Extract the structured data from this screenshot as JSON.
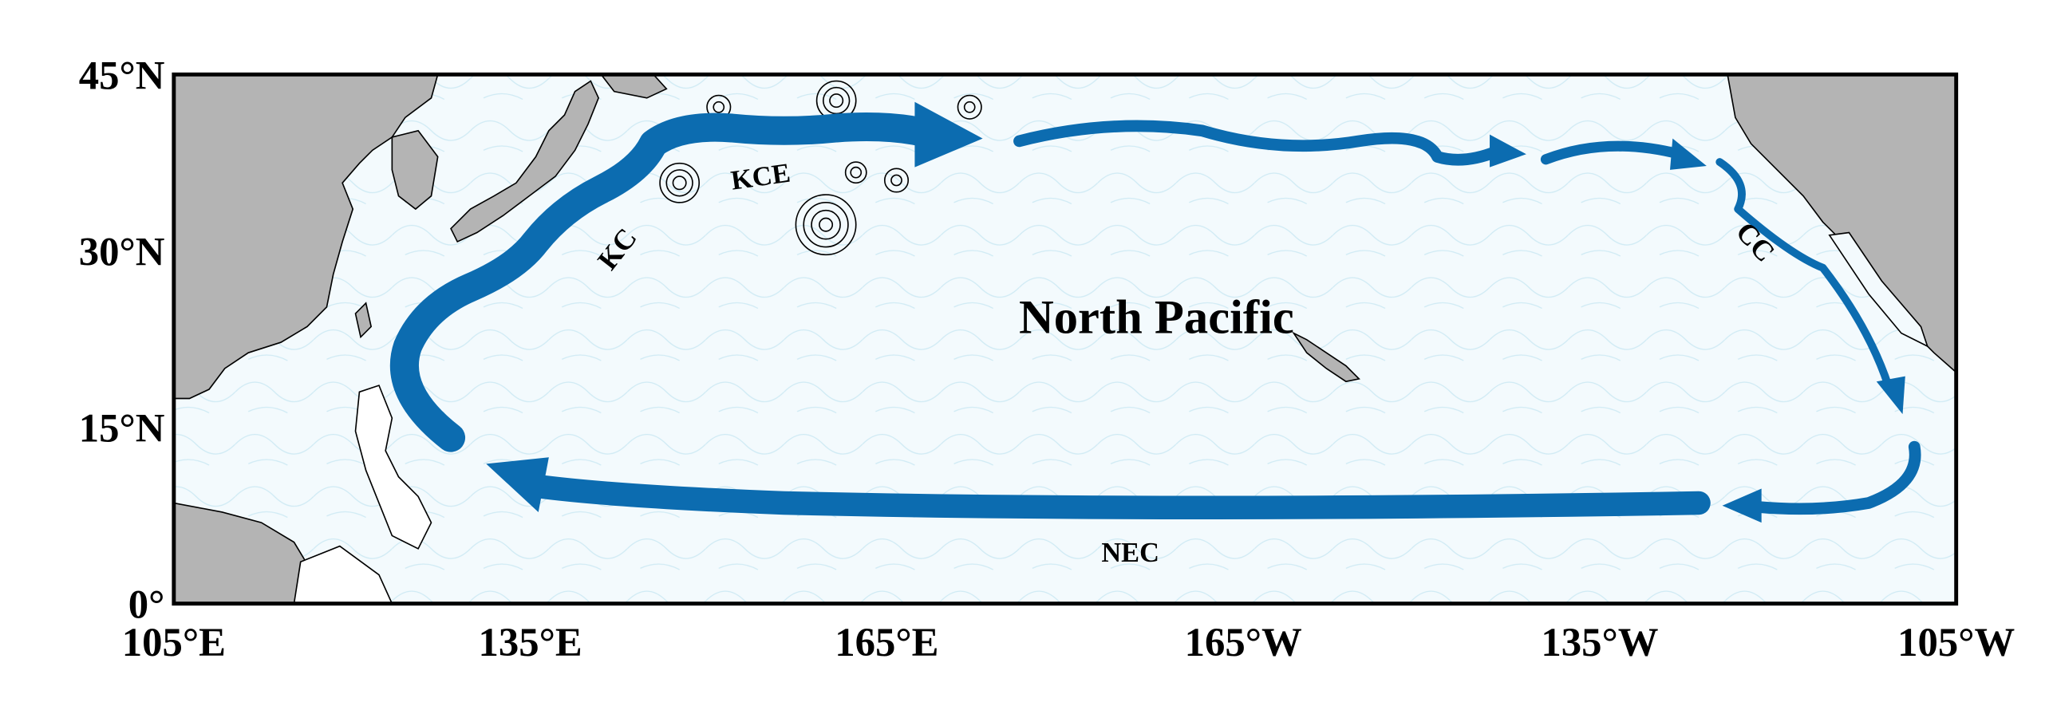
{
  "map": {
    "region_label": "North Pacific",
    "currents": [
      "KC",
      "KCE",
      "CC",
      "NEC"
    ],
    "xticks": [
      "105°E",
      "135°E",
      "165°E",
      "165°W",
      "135°W",
      "105°W"
    ],
    "yticks": [
      "45°N",
      "30°N",
      "15°N",
      "0°"
    ]
  }
}
